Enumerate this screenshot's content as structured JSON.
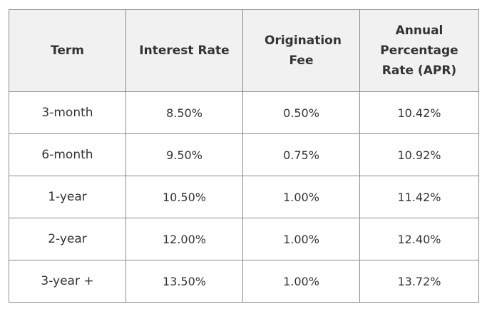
{
  "table": {
    "headers": [
      "Term",
      "Interest Rate",
      "Origination Fee",
      "Annual Percentage Rate (APR)"
    ],
    "rows": [
      [
        "3-month",
        "8.50%",
        "0.50%",
        "10.42%"
      ],
      [
        "6-month",
        "9.50%",
        "0.75%",
        "10.92%"
      ],
      [
        "1-year",
        "10.50%",
        "1.00%",
        "11.42%"
      ],
      [
        "2-year",
        "12.00%",
        "1.00%",
        "12.40%"
      ],
      [
        "3-year +",
        "13.50%",
        "1.00%",
        "13.72%"
      ]
    ]
  },
  "colors": {
    "header_background": "#f1f1f1",
    "border": "#8c8c8c",
    "text": "#333333"
  }
}
